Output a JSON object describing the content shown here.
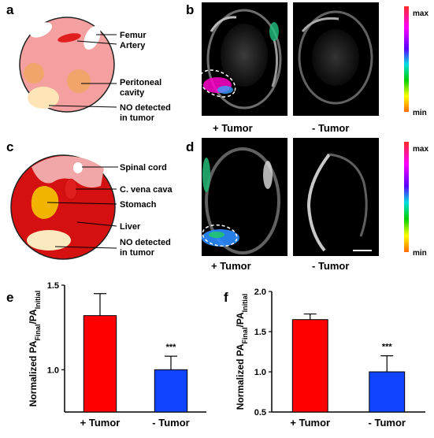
{
  "panels": {
    "a": {
      "letter": "a",
      "labels": [
        "Femur",
        "Artery",
        "Peritoneal",
        "cavity",
        "NO detected",
        "in tumor"
      ],
      "colors": {
        "body": "#f4a0a0",
        "artery": "#e01e1e",
        "cavity": "#f2a56b",
        "tumor": "#fde5b8"
      }
    },
    "b": {
      "letter": "b",
      "captions": [
        "+ Tumor",
        "- Tumor"
      ],
      "scale": {
        "max": "max",
        "min": "min"
      }
    },
    "c": {
      "letter": "c",
      "labels": [
        "Spinal cord",
        "C. vena cava",
        "Stomach",
        "Liver",
        "NO detected",
        "in tumor"
      ],
      "colors": {
        "liver": "#d41010",
        "light": "#f1a7a7",
        "stomach": "#f2b400",
        "tumor": "#fbe9c0"
      }
    },
    "d": {
      "letter": "d",
      "captions": [
        "+ Tumor",
        "- Tumor"
      ],
      "scale": {
        "max": "max",
        "min": "min"
      }
    }
  },
  "chart_data": [
    {
      "panel": "e",
      "type": "bar",
      "categories": [
        "+ Tumor",
        "- Tumor"
      ],
      "values": [
        1.32,
        1.0
      ],
      "errors": [
        0.13,
        0.08
      ],
      "colors": [
        "#ff0000",
        "#1144ff"
      ],
      "ylabel": "Normalized PA",
      "ylabel_sub1": "Final",
      "ylabel_mid": "/PA",
      "ylabel_sub2": "Initial",
      "ylim": [
        0.75,
        1.5
      ],
      "yticks": [
        "1.0",
        "1.5"
      ],
      "ytick_values": [
        1.0,
        1.5
      ],
      "annotation": "***"
    },
    {
      "panel": "f",
      "type": "bar",
      "categories": [
        "+ Tumor",
        "- Tumor"
      ],
      "values": [
        1.65,
        1.0
      ],
      "errors": [
        0.07,
        0.2
      ],
      "colors": [
        "#ff0000",
        "#1144ff"
      ],
      "ylabel": "Normalized PA",
      "ylabel_sub1": "Final",
      "ylabel_mid": "/PA",
      "ylabel_sub2": "Initial",
      "ylim": [
        0.5,
        2.0
      ],
      "yticks": [
        "0.5",
        "1.0",
        "1.5",
        "2.0"
      ],
      "ytick_values": [
        0.5,
        1.0,
        1.5,
        2.0
      ],
      "annotation": "***"
    }
  ]
}
